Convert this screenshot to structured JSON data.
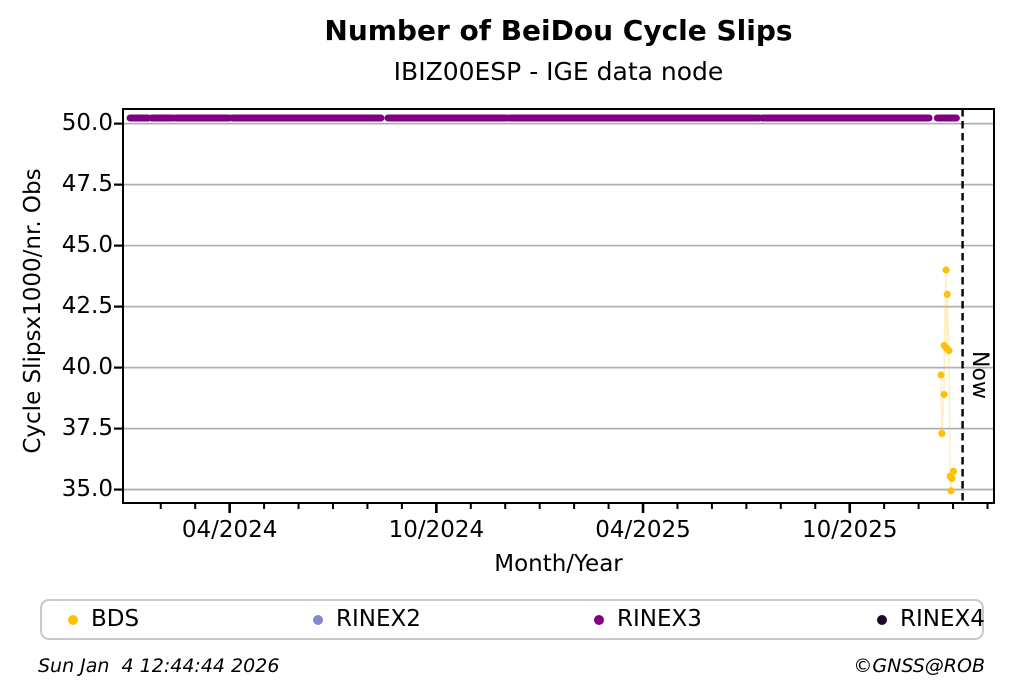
{
  "header": {
    "title": "Number of BeiDou Cycle Slips",
    "subtitle": "IBIZ00ESP - IGE data node"
  },
  "footer": {
    "timestamp": "Sun Jan  4 12:44:44 2026",
    "copyright": "©GNSS@ROB"
  },
  "legend": {
    "items": [
      {
        "label": "BDS",
        "color": "#fdc108"
      },
      {
        "label": "RINEX2",
        "color": "#8787cd"
      },
      {
        "label": "RINEX3",
        "color": "#800080"
      },
      {
        "label": "RINEX4",
        "color": "#23042a"
      }
    ]
  },
  "chart_data": {
    "type": "scatter",
    "title": "Number of BeiDou Cycle Slips",
    "subtitle": "IBIZ00ESP - IGE data node",
    "xlabel": "Month/Year",
    "ylabel": "Cycle Slipsx1000/nr. Obs",
    "grid": true,
    "grid_color": "#b0b0b0",
    "x_domain_years": [
      2023.992,
      2026.099
    ],
    "y_domain": [
      34.45,
      50.6
    ],
    "y_ticks": [
      35.0,
      37.5,
      40.0,
      42.5,
      45.0,
      47.5,
      50.0
    ],
    "x_major_ticks": [
      {
        "year": 2024.25,
        "label": "04/2024"
      },
      {
        "year": 2024.75,
        "label": "10/2024"
      },
      {
        "year": 2025.25,
        "label": "04/2025"
      },
      {
        "year": 2025.75,
        "label": "10/2025"
      }
    ],
    "x_minor_ticks": {
      "start_year": 2024.0833,
      "step_years": 0.083333,
      "end_year": 2026.09
    },
    "now_line": {
      "year": 2026.023,
      "label": "Now",
      "color": "#000000"
    },
    "series": [
      {
        "name": "BDS",
        "type": "scatter-line",
        "color": "#fdc108",
        "points": [
          [
            2025.971,
            39.7
          ],
          [
            2025.973,
            37.3
          ],
          [
            2025.978,
            38.9
          ],
          [
            2025.9785,
            40.9
          ],
          [
            2025.983,
            44.0
          ],
          [
            2025.984,
            40.8
          ],
          [
            2025.986,
            43.0
          ],
          [
            2025.99,
            40.7
          ],
          [
            2025.993,
            35.55
          ],
          [
            2025.995,
            34.95
          ],
          [
            2025.997,
            35.45
          ],
          [
            2026.001,
            35.75
          ]
        ]
      },
      {
        "name": "RINEX2",
        "type": "scatter",
        "color": "#8787cd",
        "points": []
      },
      {
        "name": "RINEX3",
        "type": "band",
        "color": "#800080",
        "y": 50.23,
        "segments": [
          [
            2024.009,
            2024.053
          ],
          [
            2024.062,
            2024.113
          ],
          [
            2024.12,
            2024.248
          ],
          [
            2024.256,
            2024.616
          ],
          [
            2024.633,
            2024.921
          ],
          [
            2024.928,
            2025.53
          ],
          [
            2025.538,
            2025.942
          ],
          [
            2025.962,
            2026.008
          ]
        ]
      },
      {
        "name": "RINEX4",
        "type": "scatter",
        "color": "#23042a",
        "points": []
      }
    ]
  }
}
